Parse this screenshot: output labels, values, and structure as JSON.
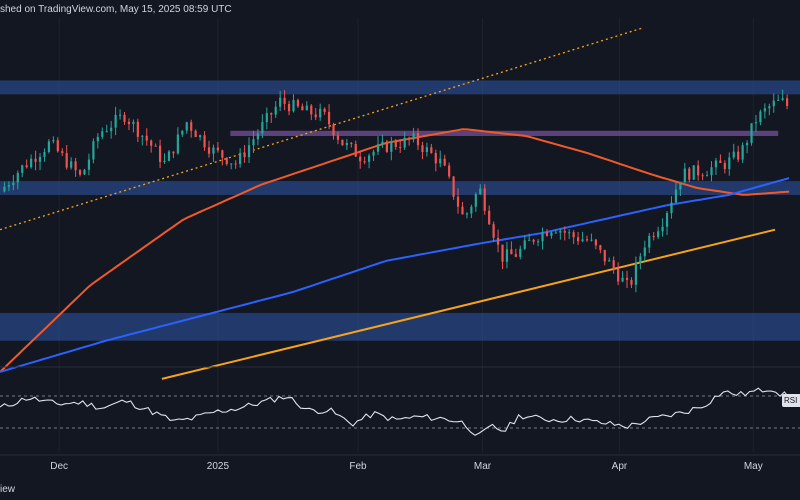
{
  "header": {
    "text": "shed on TradingView.com, May 15, 2025 08:59 UTC"
  },
  "footer": {
    "watermark": "iew"
  },
  "colors": {
    "background": "#131722",
    "up": "#26a69a",
    "down": "#ef5350",
    "zone": "#2a4a8a",
    "purple_zone": "#6a4a8a",
    "ma_slow": "#2962ff",
    "ma_fast": "#f0592a",
    "trendline": "#f7a21b",
    "rsi_line": "#e0e3eb",
    "rsi_band": "#787b86"
  },
  "chart_data": [
    {
      "type": "candlestick",
      "title": "",
      "x_axis": {
        "ticks": [
          {
            "label": "Dec",
            "week": 0.5
          },
          {
            "label": "2025",
            "week": 5.6
          },
          {
            "label": "Feb",
            "week": 10.1
          },
          {
            "label": "Mar",
            "week": 14.1
          },
          {
            "label": "Apr",
            "week": 18.5
          },
          {
            "label": "May",
            "week": 22.8
          }
        ],
        "range_weeks": [
          -1.4,
          24.3
        ]
      },
      "ylim": [
        0,
        100
      ],
      "zones": [
        {
          "name": "upper resistance zone",
          "y": [
            78,
            82
          ]
        },
        {
          "name": "purple pivot zone",
          "y": [
            66,
            67.5
          ]
        },
        {
          "name": "support zone",
          "y": [
            49,
            53
          ]
        },
        {
          "name": "lower support zone",
          "y": [
            7,
            15
          ]
        }
      ],
      "trendlines": [
        {
          "name": "dotted channel top",
          "x": [
            -1.4,
            19.2
          ],
          "y": [
            39,
            97
          ]
        },
        {
          "name": "rising support line",
          "x": [
            3.8,
            23.5
          ],
          "y": [
            -4,
            39
          ]
        }
      ],
      "moving_averages": [
        {
          "name": "fast MA",
          "x": [
            -1.4,
            1.5,
            4.5,
            7.0,
            9.0,
            11.0,
            13.5,
            15.5,
            17.5,
            19.5,
            21.0,
            22.5,
            24.0
          ],
          "y": [
            -2,
            23,
            42,
            52,
            58,
            64,
            68,
            66,
            61,
            55,
            51,
            49,
            50
          ]
        },
        {
          "name": "slow MA",
          "x": [
            -1.4,
            2.0,
            5.0,
            8.0,
            11.0,
            14.0,
            16.0,
            18.0,
            20.0,
            22.0,
            24.0
          ],
          "y": [
            -2,
            7,
            14,
            21,
            30,
            35,
            38,
            42,
            46,
            49,
            54
          ]
        }
      ],
      "price_path": {
        "x": [
          -1.4,
          -0.8,
          0.2,
          1.2,
          1.8,
          2.6,
          3.4,
          3.9,
          4.6,
          5.4,
          6.2,
          6.8,
          7.6,
          8.4,
          9.0,
          9.6,
          10.2,
          11.0,
          11.9,
          12.8,
          13.5,
          14.0,
          14.3,
          14.7,
          15.2,
          15.8,
          16.4,
          17.0,
          17.5,
          18.2,
          18.8,
          19.3,
          19.9,
          20.5,
          21.2,
          21.9,
          22.4,
          22.9,
          23.4,
          23.7,
          24.0
        ],
        "y": [
          50,
          56,
          64,
          54,
          67,
          72,
          64,
          58,
          70,
          62,
          58,
          66,
          76,
          73,
          72,
          64,
          60,
          63,
          65,
          58,
          42,
          51,
          43,
          31,
          32,
          37,
          40,
          37,
          36,
          29,
          22,
          35,
          42,
          55,
          56,
          58,
          61,
          71,
          75,
          76,
          74
        ]
      }
    },
    {
      "type": "line",
      "name": "RSI",
      "label": "RSI",
      "ylim": [
        0,
        100
      ],
      "bands": [
        70,
        30
      ],
      "x": [
        -1.4,
        -0.5,
        0.4,
        1.2,
        1.9,
        2.6,
        3.4,
        4.2,
        4.8,
        5.5,
        6.3,
        7.0,
        7.8,
        8.5,
        9.2,
        9.9,
        10.6,
        11.3,
        12.0,
        12.8,
        13.4,
        14.0,
        14.4,
        14.8,
        15.3,
        15.9,
        16.5,
        17.1,
        17.6,
        18.2,
        18.8,
        19.4,
        20.0,
        20.6,
        21.2,
        21.8,
        22.4,
        22.9,
        23.4,
        23.7,
        24.0
      ],
      "y": [
        55,
        68,
        60,
        62,
        55,
        64,
        52,
        38,
        42,
        50,
        55,
        62,
        70,
        52,
        52,
        35,
        48,
        40,
        44,
        42,
        38,
        20,
        32,
        26,
        46,
        42,
        40,
        42,
        38,
        35,
        32,
        40,
        45,
        50,
        58,
        75,
        72,
        76,
        80,
        72,
        70
      ]
    }
  ]
}
